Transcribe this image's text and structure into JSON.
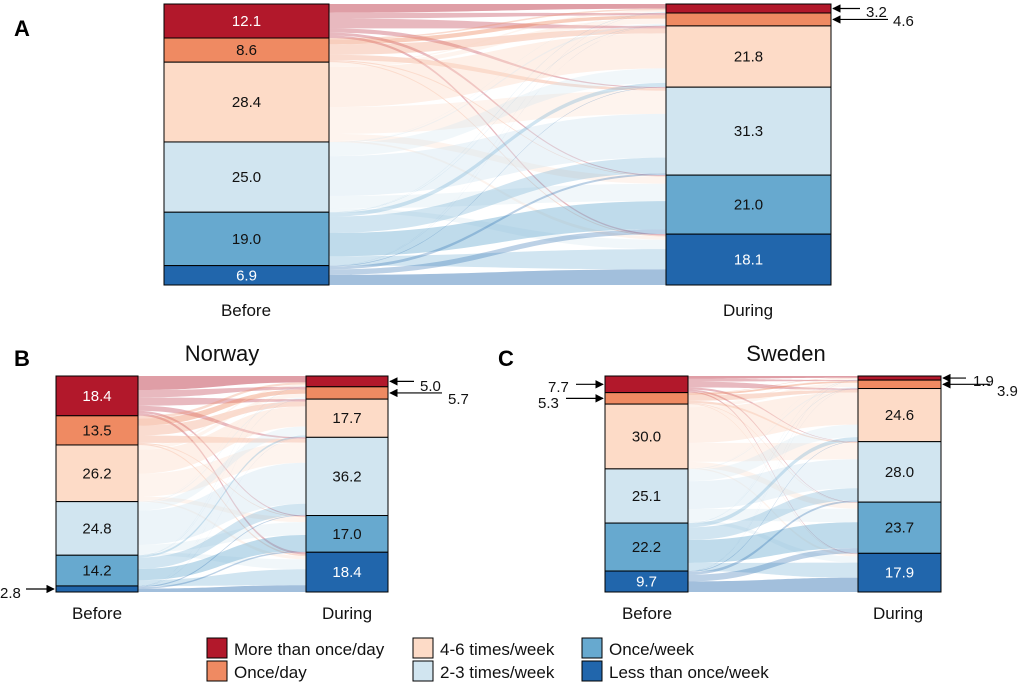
{
  "chart_data": {
    "type": "alluvial",
    "categories": [
      "More than once/day",
      "Once/day",
      "4-6 times/week",
      "2-3 times/week",
      "Once/week",
      "Less than once/week"
    ],
    "colors": {
      "More than once/day": "#b2182b",
      "Once/day": "#ef8a62",
      "4-6 times/week": "#fddbc7",
      "2-3 times/week": "#d1e5f0",
      "Once/week": "#67a9cf",
      "Less than once/week": "#2166ac"
    },
    "legend": [
      {
        "label": "More than once/day",
        "color": "#b2182b"
      },
      {
        "label": "Once/day",
        "color": "#ef8a62"
      },
      {
        "label": "4-6 times/week",
        "color": "#fddbc7"
      },
      {
        "label": "2-3 times/week",
        "color": "#d1e5f0"
      },
      {
        "label": "Once/week",
        "color": "#67a9cf"
      },
      {
        "label": "Less than once/week",
        "color": "#2166ac"
      }
    ],
    "panels": [
      {
        "id": "A",
        "title": "",
        "before_label": "Before",
        "during_label": "During",
        "before": [
          12.1,
          8.6,
          28.4,
          25.0,
          19.0,
          6.9
        ],
        "during": [
          3.2,
          4.6,
          21.8,
          31.3,
          21.0,
          18.1
        ],
        "before_text": [
          "12.1",
          "8.6",
          "28.4",
          "25.0",
          "19.0",
          "6.9"
        ],
        "during_text": [
          "3.2",
          "4.6",
          "21.8",
          "31.3",
          "21.0",
          "18.1"
        ],
        "before_callouts": [],
        "during_callouts": [
          0,
          1
        ]
      },
      {
        "id": "B",
        "title": "Norway",
        "before_label": "Before",
        "during_label": "During",
        "before": [
          18.4,
          13.5,
          26.2,
          24.8,
          14.2,
          2.8
        ],
        "during": [
          5.0,
          5.7,
          17.7,
          36.2,
          17.0,
          18.4
        ],
        "before_text": [
          "18.4",
          "13.5",
          "26.2",
          "24.8",
          "14.2",
          "2.8"
        ],
        "during_text": [
          "5.0",
          "5.7",
          "17.7",
          "36.2",
          "17.0",
          "18.4"
        ],
        "before_callouts": [
          5
        ],
        "during_callouts": [
          0,
          1
        ]
      },
      {
        "id": "C",
        "title": "Sweden",
        "before_label": "Before",
        "during_label": "During",
        "before": [
          7.7,
          5.3,
          30.0,
          25.1,
          22.2,
          9.7
        ],
        "during": [
          1.9,
          3.9,
          24.6,
          28.0,
          23.7,
          17.9
        ],
        "before_text": [
          "7.7",
          "5.3",
          "30.0",
          "25.1",
          "22.2",
          "9.7"
        ],
        "during_text": [
          "1.9",
          "3.9",
          "24.6",
          "28.0",
          "23.7",
          "17.9"
        ],
        "before_callouts": [
          0,
          1
        ],
        "during_callouts": [
          0,
          1
        ]
      }
    ]
  }
}
